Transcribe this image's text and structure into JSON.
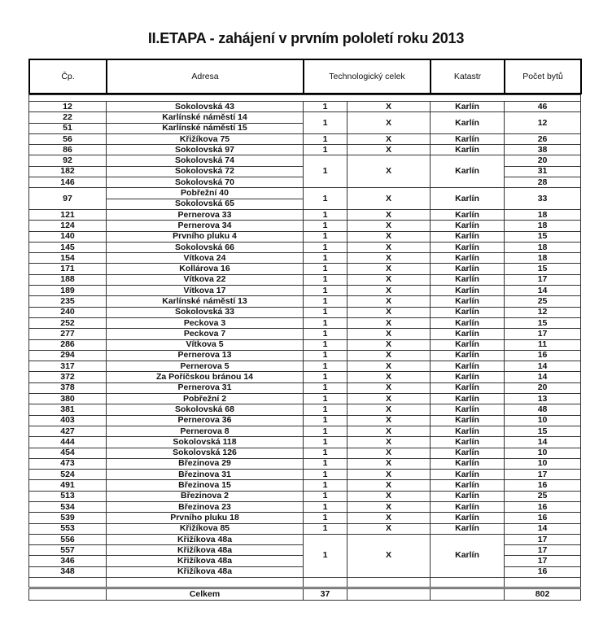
{
  "title": "II.ETAPA - zahájení v prvním pololetí roku 2013",
  "headers": {
    "cp": "Čp.",
    "adresa": "Adresa",
    "tc": "Technologický celek",
    "katastr": "Katastr",
    "byty": "Počet bytů"
  },
  "rows": [
    {
      "cp": [
        "12"
      ],
      "adresa": [
        "Sokolovská 43"
      ],
      "tc": "1",
      "x": "X",
      "katastr": "Karlín",
      "byty": [
        "46"
      ]
    },
    {
      "cp": [
        "22",
        "51"
      ],
      "adresa": [
        "Karlínské náměstí 14",
        "Karlínské náměstí 15"
      ],
      "tc": "1",
      "x": "X",
      "katastr": "Karlín",
      "byty": [
        "12"
      ]
    },
    {
      "cp": [
        "56"
      ],
      "adresa": [
        "Křižíkova 75"
      ],
      "tc": "1",
      "x": "X",
      "katastr": "Karlín",
      "byty": [
        "26"
      ]
    },
    {
      "cp": [
        "86"
      ],
      "adresa": [
        "Sokolovská 97"
      ],
      "tc": "1",
      "x": "X",
      "katastr": "Karlín",
      "byty": [
        "38"
      ]
    },
    {
      "cp": [
        "92",
        "182",
        "146"
      ],
      "adresa": [
        "Sokolovská 74",
        "Sokolovská 72",
        "Sokolovská 70"
      ],
      "tc": "1",
      "x": "X",
      "katastr": "Karlín",
      "byty": [
        "20",
        "31",
        "28"
      ]
    },
    {
      "cp": [
        "97"
      ],
      "adresa": [
        "Pobřežní 40",
        "Sokolovská 65"
      ],
      "tc": "1",
      "x": "X",
      "katastr": "Karlín",
      "byty": [
        "33"
      ]
    },
    {
      "cp": [
        "121"
      ],
      "adresa": [
        "Pernerova 33"
      ],
      "tc": "1",
      "x": "X",
      "katastr": "Karlín",
      "byty": [
        "18"
      ]
    },
    {
      "cp": [
        "124"
      ],
      "adresa": [
        "Pernerova 34"
      ],
      "tc": "1",
      "x": "X",
      "katastr": "Karlín",
      "byty": [
        "18"
      ]
    },
    {
      "cp": [
        "140"
      ],
      "adresa": [
        "Prvního pluku 4"
      ],
      "tc": "1",
      "x": "X",
      "katastr": "Karlín",
      "byty": [
        "15"
      ]
    },
    {
      "cp": [
        "145"
      ],
      "adresa": [
        "Sokolovská 66"
      ],
      "tc": "1",
      "x": "X",
      "katastr": "Karlín",
      "byty": [
        "18"
      ]
    },
    {
      "cp": [
        "154"
      ],
      "adresa": [
        "Vítkova 24"
      ],
      "tc": "1",
      "x": "X",
      "katastr": "Karlín",
      "byty": [
        "18"
      ]
    },
    {
      "cp": [
        "171"
      ],
      "adresa": [
        "Kollárova 16"
      ],
      "tc": "1",
      "x": "X",
      "katastr": "Karlín",
      "byty": [
        "15"
      ]
    },
    {
      "cp": [
        "188"
      ],
      "adresa": [
        "Vítkova 22"
      ],
      "tc": "1",
      "x": "X",
      "katastr": "Karlín",
      "byty": [
        "17"
      ]
    },
    {
      "cp": [
        "189"
      ],
      "adresa": [
        "Vítkova 17"
      ],
      "tc": "1",
      "x": "X",
      "katastr": "Karlín",
      "byty": [
        "14"
      ]
    },
    {
      "cp": [
        "235"
      ],
      "adresa": [
        "Karlínské náměstí 13"
      ],
      "tc": "1",
      "x": "X",
      "katastr": "Karlín",
      "byty": [
        "25"
      ]
    },
    {
      "cp": [
        "240"
      ],
      "adresa": [
        "Sokolovská 33"
      ],
      "tc": "1",
      "x": "X",
      "katastr": "Karlín",
      "byty": [
        "12"
      ]
    },
    {
      "cp": [
        "252"
      ],
      "adresa": [
        "Peckova 3"
      ],
      "tc": "1",
      "x": "X",
      "katastr": "Karlín",
      "byty": [
        "15"
      ]
    },
    {
      "cp": [
        "277"
      ],
      "adresa": [
        "Peckova 7"
      ],
      "tc": "1",
      "x": "X",
      "katastr": "Karlín",
      "byty": [
        "17"
      ]
    },
    {
      "cp": [
        "286"
      ],
      "adresa": [
        "Vítkova 5"
      ],
      "tc": "1",
      "x": "X",
      "katastr": "Karlín",
      "byty": [
        "11"
      ]
    },
    {
      "cp": [
        "294"
      ],
      "adresa": [
        "Pernerova 13"
      ],
      "tc": "1",
      "x": "X",
      "katastr": "Karlín",
      "byty": [
        "16"
      ]
    },
    {
      "cp": [
        "317"
      ],
      "adresa": [
        "Pernerova 5"
      ],
      "tc": "1",
      "x": "X",
      "katastr": "Karlín",
      "byty": [
        "14"
      ]
    },
    {
      "cp": [
        "372"
      ],
      "adresa": [
        "Za Poříčskou bránou 14"
      ],
      "tc": "1",
      "x": "X",
      "katastr": "Karlín",
      "byty": [
        "14"
      ]
    },
    {
      "cp": [
        "378"
      ],
      "adresa": [
        "Pernerova 31"
      ],
      "tc": "1",
      "x": "X",
      "katastr": "Karlín",
      "byty": [
        "20"
      ]
    },
    {
      "cp": [
        "380"
      ],
      "adresa": [
        "Pobřežní 2"
      ],
      "tc": "1",
      "x": "X",
      "katastr": "Karlín",
      "byty": [
        "13"
      ]
    },
    {
      "cp": [
        "381"
      ],
      "adresa": [
        "Sokolovská 68"
      ],
      "tc": "1",
      "x": "X",
      "katastr": "Karlín",
      "byty": [
        "48"
      ]
    },
    {
      "cp": [
        "403"
      ],
      "adresa": [
        "Pernerova 36"
      ],
      "tc": "1",
      "x": "X",
      "katastr": "Karlín",
      "byty": [
        "10"
      ]
    },
    {
      "cp": [
        "427"
      ],
      "adresa": [
        "Pernerova 8"
      ],
      "tc": "1",
      "x": "X",
      "katastr": "Karlín",
      "byty": [
        "15"
      ]
    },
    {
      "cp": [
        "444"
      ],
      "adresa": [
        "Sokolovská 118"
      ],
      "tc": "1",
      "x": "X",
      "katastr": "Karlín",
      "byty": [
        "14"
      ]
    },
    {
      "cp": [
        "454"
      ],
      "adresa": [
        "Sokolovská 126"
      ],
      "tc": "1",
      "x": "X",
      "katastr": "Karlín",
      "byty": [
        "10"
      ]
    },
    {
      "cp": [
        "473"
      ],
      "adresa": [
        "Březinova 29"
      ],
      "tc": "1",
      "x": "X",
      "katastr": "Karlín",
      "byty": [
        "10"
      ]
    },
    {
      "cp": [
        "524"
      ],
      "adresa": [
        "Březinova 31"
      ],
      "tc": "1",
      "x": "X",
      "katastr": "Karlín",
      "byty": [
        "17"
      ]
    },
    {
      "cp": [
        "491"
      ],
      "adresa": [
        "Březinova 15"
      ],
      "tc": "1",
      "x": "X",
      "katastr": "Karlín",
      "byty": [
        "16"
      ]
    },
    {
      "cp": [
        "513"
      ],
      "adresa": [
        "Březinova 2"
      ],
      "tc": "1",
      "x": "X",
      "katastr": "Karlín",
      "byty": [
        "25"
      ]
    },
    {
      "cp": [
        "534"
      ],
      "adresa": [
        "Březinova 23"
      ],
      "tc": "1",
      "x": "X",
      "katastr": "Karlín",
      "byty": [
        "16"
      ]
    },
    {
      "cp": [
        "539"
      ],
      "adresa": [
        "Prvního pluku 18"
      ],
      "tc": "1",
      "x": "X",
      "katastr": "Karlín",
      "byty": [
        "16"
      ]
    },
    {
      "cp": [
        "553"
      ],
      "adresa": [
        "Křižíkova 85"
      ],
      "tc": "1",
      "x": "X",
      "katastr": "Karlín",
      "byty": [
        "14"
      ]
    },
    {
      "cp": [
        "556",
        "557",
        "346",
        "348"
      ],
      "adresa": [
        "Křižíkova 48a",
        "Křižíkova 48a",
        "Křižíkova 48a",
        "Křižíkova 48a"
      ],
      "tc": "1",
      "x": "X",
      "katastr": "Karlín",
      "byty": [
        "17",
        "17",
        "17",
        "16"
      ]
    }
  ],
  "total": {
    "label": "Celkem",
    "tc": "37",
    "byty": "802"
  }
}
